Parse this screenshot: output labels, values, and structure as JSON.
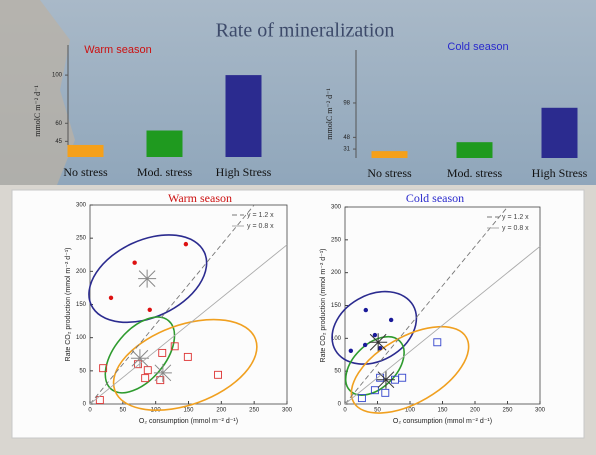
{
  "title": "Rate of mineralization",
  "chart_data": [
    {
      "type": "bar",
      "title": "Warm season",
      "title_color": "#cc1111",
      "categories": [
        "No stress",
        "Mod. stress",
        "High Stress"
      ],
      "values": [
        42,
        54,
        100
      ],
      "colors": [
        "#f5a01a",
        "#1f9a1f",
        "#2b2b8f"
      ],
      "ylabel": "mmolC m⁻² d⁻¹",
      "ylim": [
        32,
        125
      ],
      "yticks": [
        45,
        60,
        100
      ]
    },
    {
      "type": "bar",
      "title": "Cold season",
      "title_color": "#2a2acc",
      "categories": [
        "No stress",
        "Mod. stress",
        "High Stress"
      ],
      "values": [
        28,
        41,
        91
      ],
      "colors": [
        "#f5a01a",
        "#1f9a1f",
        "#2b2b8f"
      ],
      "ylabel": "mmolC m⁻² d⁻¹",
      "ylim": [
        18,
        175
      ],
      "yticks": [
        31,
        48,
        98
      ]
    },
    {
      "type": "scatter",
      "title": "Warm season",
      "title_color": "#cc1111",
      "xlabel": "O₂ consumption (mmol m⁻² d⁻¹)",
      "ylabel": "Rate CO₂ production (mmol m⁻² d⁻¹)",
      "xlim": [
        0,
        300
      ],
      "ylim": [
        0,
        300
      ],
      "xticks": [
        0,
        50,
        100,
        150,
        200,
        250,
        300
      ],
      "yticks": [
        0,
        50,
        100,
        150,
        200,
        250,
        300
      ],
      "series": [
        {
          "marker": "dot",
          "color": "#dd1111",
          "x": [
            32,
            68,
            91,
            146
          ],
          "values": [
            160,
            213,
            142,
            241
          ]
        },
        {
          "marker": "square",
          "color": "#dd3333",
          "x": [
            20,
            73,
            88,
            110,
            129,
            149,
            195,
            107,
            84,
            15
          ],
          "values": [
            54,
            60,
            51,
            77,
            87,
            71,
            44,
            36,
            39,
            6
          ]
        },
        {
          "marker": "cross",
          "color": "#888888",
          "x": [
            87,
            76,
            111
          ],
          "values": [
            189,
            69,
            47
          ]
        },
        {
          "name": "y = 1.2 x",
          "marker": "dashed-line",
          "color": "#777777",
          "x": [
            0,
            250
          ],
          "values": [
            0,
            300
          ]
        },
        {
          "name": "y = 0.8 x",
          "marker": "solid-line",
          "color": "#aaaaaa",
          "x": [
            0,
            300
          ],
          "values": [
            0,
            240
          ]
        }
      ],
      "ellipses": [
        {
          "color": "#2b2b8f",
          "cx": 88,
          "cy": 189,
          "rx": 95,
          "ry": 58,
          "angle": -25
        },
        {
          "color": "#2e9b2e",
          "cx": 76,
          "cy": 74,
          "rx": 68,
          "ry": 38,
          "angle": -50
        },
        {
          "color": "#f0a020",
          "cx": 145,
          "cy": 59,
          "rx": 114,
          "ry": 60,
          "angle": -20
        }
      ]
    },
    {
      "type": "scatter",
      "title": "Cold season",
      "title_color": "#2a2acc",
      "xlabel": "O₂ consumption (mmol m⁻² d⁻¹)",
      "ylabel": "Rate CO₂ production (mmol m⁻² d⁻¹)",
      "xlim": [
        0,
        300
      ],
      "ylim": [
        0,
        300
      ],
      "xticks": [
        0,
        50,
        100,
        150,
        200,
        250,
        300
      ],
      "yticks": [
        0,
        50,
        100,
        150,
        200,
        250,
        300
      ],
      "series": [
        {
          "marker": "dot",
          "color": "#1a1a99",
          "x": [
            32,
            46,
            71,
            31,
            9,
            54
          ],
          "values": [
            143,
            105,
            128,
            90,
            81,
            85
          ]
        },
        {
          "marker": "square",
          "color": "#3344cc",
          "x": [
            54,
            77,
            88,
            62,
            26,
            142,
            46
          ],
          "values": [
            40,
            37,
            40,
            17,
            9,
            94,
            21
          ]
        },
        {
          "marker": "cross",
          "color": "#333333",
          "x": [
            51,
            63
          ],
          "values": [
            94,
            37
          ]
        },
        {
          "name": "y = 1.2 x",
          "marker": "dashed-line",
          "color": "#777777",
          "x": [
            0,
            250
          ],
          "values": [
            0,
            300
          ]
        },
        {
          "name": "y = 0.8 x",
          "marker": "solid-line",
          "color": "#aaaaaa",
          "x": [
            0,
            300
          ],
          "values": [
            0,
            240
          ]
        }
      ],
      "ellipses": [
        {
          "color": "#2b2b8f",
          "cx": 45,
          "cy": 116,
          "rx": 69,
          "ry": 50,
          "angle": -30
        },
        {
          "color": "#2e9b2e",
          "cx": 46,
          "cy": 58,
          "rx": 54,
          "ry": 33,
          "angle": -45
        },
        {
          "color": "#f0a020",
          "cx": 100,
          "cy": 52,
          "rx": 100,
          "ry": 50,
          "angle": -30
        }
      ]
    }
  ]
}
